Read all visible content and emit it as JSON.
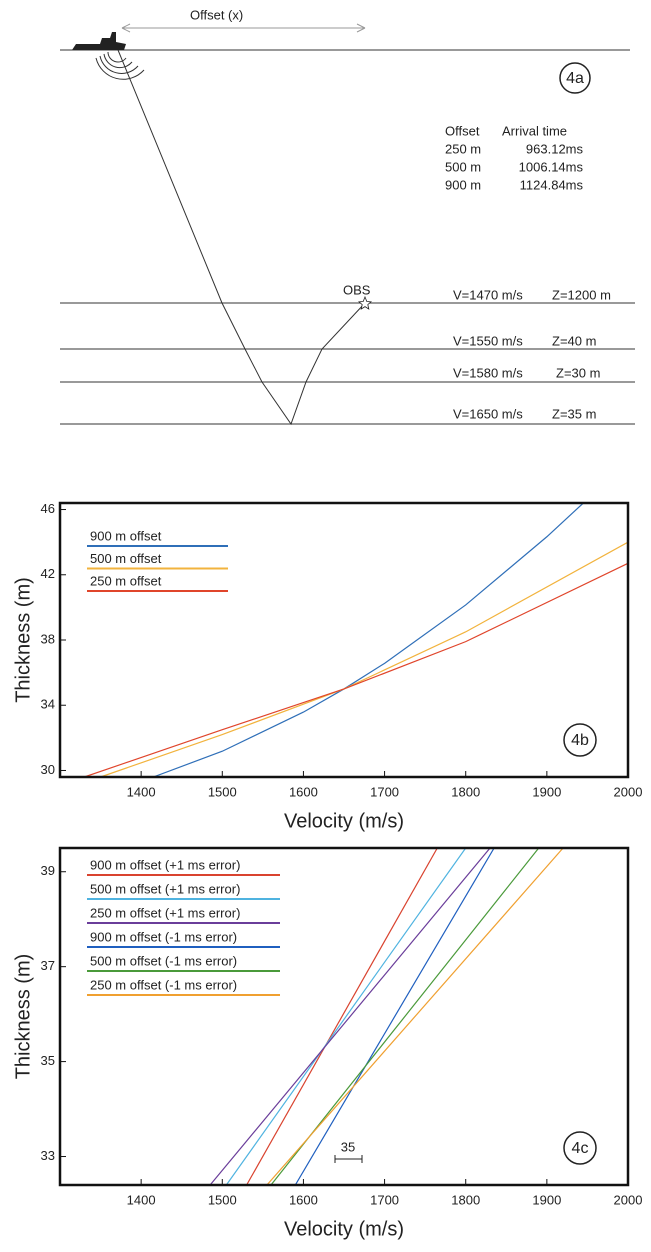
{
  "diagram": {
    "offset_label": "Offset (x)",
    "panel": "4a",
    "table": {
      "header": [
        "Offset",
        "Arrival time"
      ],
      "rows": [
        [
          "250 m",
          "963.12ms"
        ],
        [
          "500 m",
          "1006.14ms"
        ],
        [
          "900 m",
          "1124.84ms"
        ]
      ]
    },
    "obs": "OBS",
    "layers": [
      {
        "velocity": "V=1470 m/s",
        "thickness": "Z=1200 m"
      },
      {
        "velocity": "V=1550 m/s",
        "thickness": "Z=40 m"
      },
      {
        "velocity": "V=1580 m/s",
        "thickness": "Z=30 m"
      },
      {
        "velocity": "V=1650 m/s",
        "thickness": "Z=35 m"
      }
    ]
  },
  "chart_data": [
    {
      "type": "line",
      "panel": "4b",
      "x_label": "Velocity (m/s)",
      "y_label": "Thickness (m)",
      "xlim": [
        1300,
        2000
      ],
      "xticks": [
        1400,
        1500,
        1600,
        1700,
        1800,
        1900,
        2000
      ],
      "ylim": [
        29.6,
        46.4
      ],
      "yticks": [
        30,
        34,
        38,
        42,
        46
      ],
      "series": [
        {
          "name": "900 m offset",
          "color": "#2f6fb8",
          "x": [
            1415,
            1500,
            1600,
            1650,
            1700,
            1800,
            1900,
            1945
          ],
          "values": [
            29.6,
            31.18,
            33.58,
            35,
            36.57,
            40.15,
            44.33,
            46.4
          ]
        },
        {
          "name": "500 m offset",
          "color": "#f2b33d",
          "x": [
            1350,
            1500,
            1650,
            1800,
            2000
          ],
          "values": [
            29.6,
            32.2,
            35,
            38.5,
            44
          ]
        },
        {
          "name": "250 m offset",
          "color": "#e0452b",
          "x": [
            1330,
            1500,
            1650,
            1800,
            2000
          ],
          "values": [
            29.6,
            32.5,
            35,
            37.9,
            42.7
          ]
        }
      ]
    },
    {
      "type": "line",
      "panel": "4c",
      "x_label": "Velocity (m/s)",
      "y_label": "Thickness (m)",
      "annotation": "35",
      "xlim": [
        1300,
        2000
      ],
      "xticks": [
        1400,
        1500,
        1600,
        1700,
        1800,
        1900,
        2000
      ],
      "ylim": [
        32.4,
        39.5
      ],
      "yticks": [
        33,
        35,
        37,
        39
      ],
      "series": [
        {
          "name": "900 m offset (+1 ms error)",
          "color": "#d9432f",
          "x": [
            1530,
            1765
          ],
          "values": [
            32.4,
            39.5
          ]
        },
        {
          "name": "500 m offset (+1 ms error)",
          "color": "#4fb3e0",
          "x": [
            1505,
            1800
          ],
          "values": [
            32.4,
            39.5
          ]
        },
        {
          "name": "250 m offset (+1 ms error)",
          "color": "#6a3d9a",
          "x": [
            1485,
            1830
          ],
          "values": [
            32.4,
            39.5
          ]
        },
        {
          "name": "900 m offset (-1 ms error)",
          "color": "#1f5fbf",
          "x": [
            1590,
            1835
          ],
          "values": [
            32.4,
            39.5
          ]
        },
        {
          "name": "500 m offset (-1 ms error)",
          "color": "#4a9a3a",
          "x": [
            1560,
            1890
          ],
          "values": [
            32.4,
            39.5
          ]
        },
        {
          "name": "250 m offset (-1 ms error)",
          "color": "#f0a030",
          "x": [
            1555,
            1920
          ],
          "values": [
            32.4,
            39.5
          ]
        }
      ]
    }
  ]
}
